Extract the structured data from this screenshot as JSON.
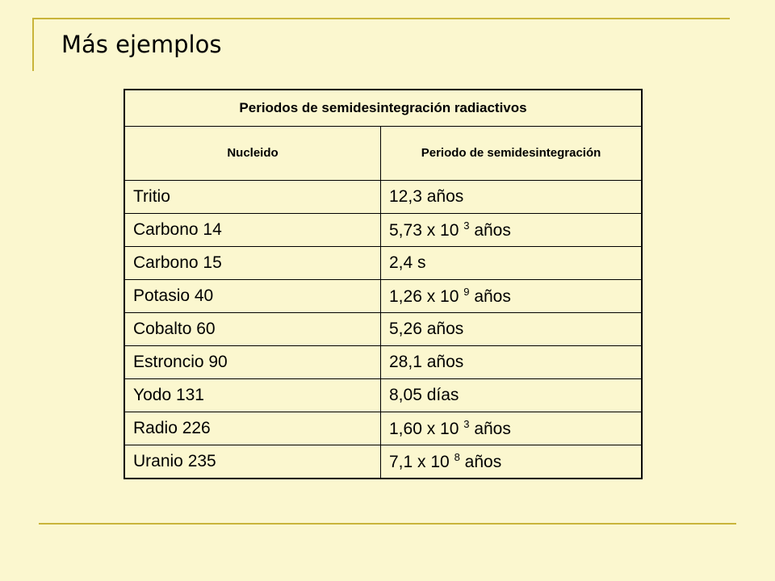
{
  "slide": {
    "title": "Más ejemplos"
  },
  "table": {
    "caption": "Periodos de semidesintegración radiactivos",
    "headers": [
      "Nucleido",
      "Periodo de semidesintegración"
    ],
    "rows": [
      {
        "nucleido": "Tritio",
        "periodo": "12,3 años"
      },
      {
        "nucleido": "Carbono 14",
        "mantissa": "5,73 x 10",
        "exponent": "3",
        "unit": "años"
      },
      {
        "nucleido": "Carbono 15",
        "periodo": "2,4 s"
      },
      {
        "nucleido": "Potasio 40",
        "mantissa": "1,26 x 10",
        "exponent": "9",
        "unit": "años"
      },
      {
        "nucleido": "Cobalto 60",
        "periodo": "5,26 años"
      },
      {
        "nucleido": "Estroncio 90",
        "periodo": "28,1 años"
      },
      {
        "nucleido": "Yodo 131",
        "periodo": "8,05 días"
      },
      {
        "nucleido": "Radio 226",
        "mantissa": "1,60 x 10",
        "exponent": "3",
        "unit": "años"
      },
      {
        "nucleido": "Uranio 235",
        "mantissa": "7,1 x 10",
        "exponent": "8",
        "unit": "años"
      }
    ]
  }
}
